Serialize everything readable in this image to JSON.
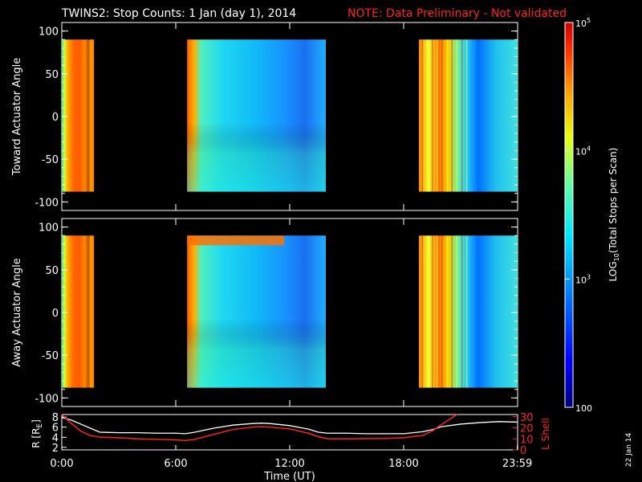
{
  "title": "TWINS2: Stop Counts:  1 Jan (day   1), 2014",
  "note": "NOTE: Data Preliminary - Not validated",
  "side_date": "22 Jan 14",
  "colors": {
    "background": "#000000",
    "axes": "#ffffff",
    "note": "#ff2020",
    "r_line": "#ffffff",
    "l_line": "#ff2020"
  },
  "chart_data": [
    {
      "type": "heatmap",
      "ylabel": "Toward Actuator Angle",
      "ylim": [
        -110,
        110
      ],
      "yticks": [
        100,
        50,
        0,
        -50,
        -100
      ],
      "x_hours": [
        0,
        24
      ],
      "angle_range": [
        -88,
        90
      ],
      "data_blocks_hours": [
        [
          0.0,
          1.7
        ],
        [
          6.6,
          13.9
        ],
        [
          18.8,
          24.0
        ]
      ],
      "color_scale": "log",
      "zlim": [
        100,
        100000
      ]
    },
    {
      "type": "heatmap",
      "ylabel": "Away Actuator Angle",
      "ylim": [
        -110,
        110
      ],
      "yticks": [
        100,
        50,
        0,
        -50,
        -100
      ],
      "x_hours": [
        0,
        24
      ],
      "angle_range": [
        -88,
        90
      ],
      "data_blocks_hours": [
        [
          0.0,
          1.7
        ],
        [
          6.6,
          13.9
        ],
        [
          18.8,
          24.0
        ]
      ],
      "color_scale": "log",
      "zlim": [
        100,
        100000
      ]
    },
    {
      "type": "line",
      "xlabel": "Time (UT)",
      "xticks": [
        "0:00",
        "6:00",
        "12:00",
        "18:00",
        "23:59"
      ],
      "xtick_hours": [
        0,
        6,
        12,
        18,
        23.983
      ],
      "left_axis": {
        "label_parts": [
          "R [R",
          "E",
          "]"
        ],
        "ylim": [
          1.5,
          8.5
        ],
        "ticks": [
          8,
          6,
          4,
          2
        ]
      },
      "right_axis": {
        "label": "L Shell",
        "ylim": [
          0,
          32
        ],
        "ticks": [
          30,
          20,
          10,
          0
        ]
      },
      "series": [
        {
          "x": [
            0,
            0.5,
            1,
            1.5,
            2,
            3,
            4,
            5,
            6,
            6.5,
            7,
            8,
            9,
            10,
            10.5,
            11,
            12,
            13,
            13.5,
            14,
            15,
            16,
            17,
            18,
            19,
            19.5,
            20,
            21,
            22,
            23,
            23.98
          ],
          "y": [
            7.9,
            7.4,
            6.6,
            5.8,
            5.0,
            4.9,
            4.9,
            4.8,
            4.8,
            4.7,
            5.0,
            5.8,
            6.4,
            6.7,
            6.8,
            6.7,
            6.3,
            5.6,
            5.0,
            4.8,
            4.8,
            4.7,
            4.7,
            4.7,
            5.1,
            5.5,
            6.1,
            6.6,
            6.9,
            7.1,
            7.0
          ]
        },
        {
          "x": [
            0,
            0.5,
            1,
            1.5,
            2,
            3,
            4,
            5,
            6,
            6.5,
            7,
            8,
            9,
            10,
            10.5,
            11,
            12,
            13,
            13.5,
            14,
            15,
            16,
            17,
            18,
            19,
            19.5,
            20,
            20.8
          ],
          "y": [
            32,
            24,
            17,
            13,
            11.5,
            11,
            10,
            9.5,
            9,
            8.5,
            9.5,
            14,
            18.5,
            20.5,
            21,
            20.5,
            19,
            15,
            12,
            10,
            10,
            10.2,
            10.4,
            11,
            13,
            17,
            23,
            32
          ]
        }
      ]
    }
  ],
  "colorbar": {
    "scale": "log",
    "zlim": [
      100,
      100000
    ],
    "label_parts": [
      "LOG",
      "10",
      "(Total Stops per Scan)"
    ],
    "tick_labels": [
      {
        "base": "10",
        "exp": "5",
        "value": 100000
      },
      {
        "base": "10",
        "exp": "4",
        "value": 10000
      },
      {
        "base": "10",
        "exp": "3",
        "value": 1000
      },
      {
        "base": "100",
        "exp": "",
        "value": 100
      }
    ]
  }
}
